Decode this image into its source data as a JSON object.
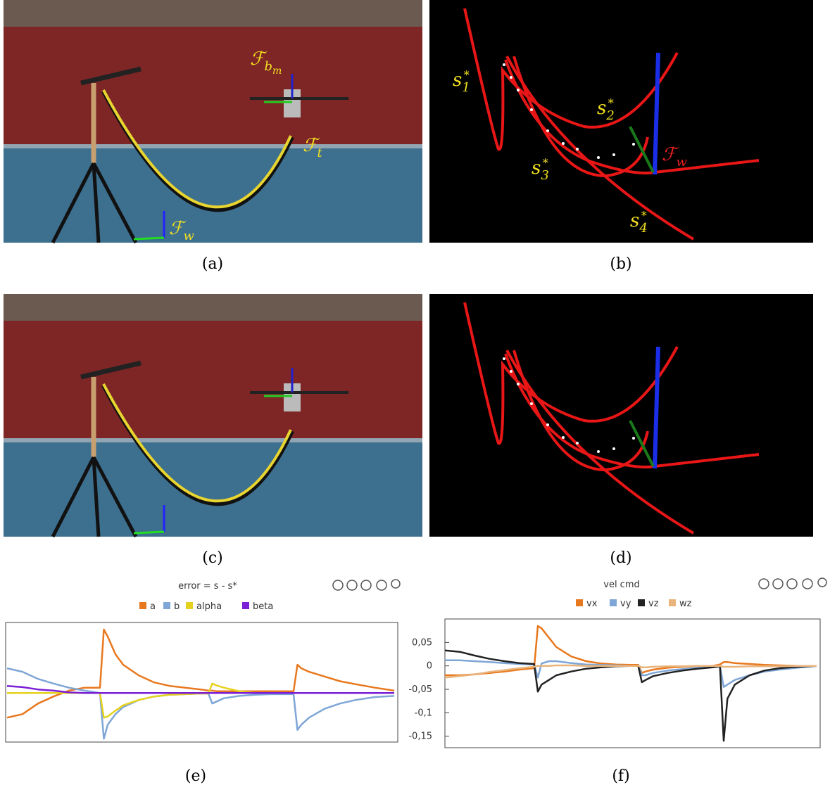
{
  "panels": [
    {
      "caption": "(a)",
      "labels": [
        {
          "symbol": "ℱ",
          "sub": "b",
          "subsub": "m"
        },
        {
          "symbol": "ℱ",
          "sub": "t"
        },
        {
          "symbol": "ℱ",
          "sub": "w"
        }
      ]
    },
    {
      "caption": "(b)",
      "labels": [
        {
          "symbol": "s",
          "sub": "1",
          "sup": "*"
        },
        {
          "symbol": "s",
          "sub": "2",
          "sup": "*"
        },
        {
          "symbol": "s",
          "sub": "3",
          "sup": "*"
        },
        {
          "symbol": "s",
          "sub": "4",
          "sup": "*"
        },
        {
          "symbol": "ℱ",
          "sub": "w"
        }
      ]
    },
    {
      "caption": "(c)"
    },
    {
      "caption": "(d)"
    },
    {
      "caption": "(e)"
    },
    {
      "caption": "(f)"
    }
  ],
  "chart_data": [
    {
      "type": "line",
      "title": "error = s - s*",
      "x": [
        0,
        4,
        8,
        12,
        16,
        20,
        24,
        25,
        26,
        28,
        30,
        34,
        38,
        42,
        46,
        50,
        52,
        53,
        54,
        56,
        60,
        64,
        68,
        72,
        74,
        75,
        76,
        78,
        82,
        86,
        90,
        95,
        100
      ],
      "xlim": [
        0,
        100
      ],
      "ylim": [
        -1,
        1
      ],
      "series": [
        {
          "name": "a",
          "color": "#e8781e",
          "values": [
            -0.62,
            -0.56,
            -0.38,
            -0.26,
            -0.16,
            -0.11,
            -0.11,
            0.88,
            0.76,
            0.46,
            0.28,
            0.1,
            -0.02,
            -0.08,
            -0.11,
            -0.14,
            -0.16,
            -0.16,
            -0.17,
            -0.17,
            -0.17,
            -0.17,
            -0.17,
            -0.17,
            -0.17,
            0.28,
            0.22,
            0.16,
            0.08,
            0,
            -0.05,
            -0.11,
            -0.16
          ]
        },
        {
          "name": "b",
          "color": "#7ea6d6",
          "values": [
            0.22,
            0.16,
            0.04,
            -0.04,
            -0.11,
            -0.16,
            -0.2,
            -0.98,
            -0.74,
            -0.56,
            -0.44,
            -0.32,
            -0.26,
            -0.23,
            -0.22,
            -0.21,
            -0.21,
            -0.38,
            -0.35,
            -0.29,
            -0.25,
            -0.23,
            -0.22,
            -0.22,
            -0.22,
            -0.83,
            -0.74,
            -0.62,
            -0.47,
            -0.38,
            -0.32,
            -0.27,
            -0.25
          ]
        },
        {
          "name": "alpha",
          "color": "#e6d21e",
          "values": [
            -0.2,
            -0.2,
            -0.2,
            -0.2,
            -0.2,
            -0.2,
            -0.2,
            -0.62,
            -0.6,
            -0.5,
            -0.41,
            -0.32,
            -0.26,
            -0.23,
            -0.22,
            -0.21,
            -0.21,
            -0.04,
            -0.07,
            -0.11,
            -0.17,
            -0.2,
            -0.2,
            -0.2,
            -0.2,
            -0.2,
            -0.2,
            -0.2,
            -0.2,
            -0.2,
            -0.2,
            -0.2,
            -0.2
          ]
        },
        {
          "name": "beta",
          "color": "#7a1fd6",
          "values": [
            -0.08,
            -0.1,
            -0.14,
            -0.16,
            -0.19,
            -0.2,
            -0.2,
            -0.2,
            -0.2,
            -0.2,
            -0.2,
            -0.2,
            -0.2,
            -0.2,
            -0.2,
            -0.2,
            -0.2,
            -0.2,
            -0.2,
            -0.2,
            -0.2,
            -0.2,
            -0.2,
            -0.2,
            -0.2,
            -0.2,
            -0.2,
            -0.2,
            -0.2,
            -0.2,
            -0.2,
            -0.2,
            -0.2
          ]
        }
      ]
    },
    {
      "type": "line",
      "title": "vel cmd",
      "x": [
        0,
        4,
        8,
        12,
        16,
        20,
        24,
        25,
        26,
        28,
        30,
        34,
        38,
        42,
        46,
        50,
        52,
        53,
        54,
        56,
        60,
        64,
        68,
        72,
        74,
        75,
        76,
        78,
        82,
        86,
        90,
        95,
        100
      ],
      "xlim": [
        0,
        100
      ],
      "ylim": [
        -0.17,
        0.1
      ],
      "yticks": [
        {
          "value": 0.05,
          "label": "0,05"
        },
        0,
        {
          "value": -0.05,
          "label": "-0,05"
        },
        {
          "value": -0.1,
          "label": "-0,1"
        },
        {
          "value": -0.15,
          "label": "-0,15"
        }
      ],
      "series": [
        {
          "name": "vx",
          "color": "#e8781e",
          "values": [
            -0.02,
            -0.02,
            -0.018,
            -0.015,
            -0.012,
            -0.008,
            -0.005,
            0.085,
            0.08,
            0.06,
            0.04,
            0.02,
            0.01,
            0.005,
            0.003,
            0.002,
            0.002,
            -0.015,
            -0.012,
            -0.008,
            -0.004,
            -0.002,
            0,
            0,
            0.003,
            0.008,
            0.008,
            0.006,
            0.004,
            0.002,
            0.001,
            0,
            0
          ]
        },
        {
          "name": "vy",
          "color": "#7ea6d6",
          "values": [
            0.012,
            0.012,
            0.01,
            0.008,
            0.006,
            0.004,
            0.003,
            -0.025,
            0.005,
            0.01,
            0.01,
            0.006,
            0.003,
            0.002,
            0.001,
            0,
            0,
            -0.02,
            -0.02,
            -0.015,
            -0.01,
            -0.007,
            -0.004,
            -0.002,
            0,
            -0.045,
            -0.04,
            -0.03,
            -0.02,
            -0.012,
            -0.008,
            -0.004,
            0
          ]
        },
        {
          "name": "vz",
          "color": "#222222",
          "values": [
            0.033,
            0.03,
            0.022,
            0.015,
            0.01,
            0.006,
            0.004,
            -0.055,
            -0.04,
            -0.03,
            -0.02,
            -0.012,
            -0.006,
            -0.003,
            -0.001,
            0,
            0,
            -0.035,
            -0.03,
            -0.022,
            -0.015,
            -0.01,
            -0.006,
            -0.003,
            -0.001,
            -0.16,
            -0.07,
            -0.04,
            -0.02,
            -0.01,
            -0.005,
            -0.002,
            0
          ]
        },
        {
          "name": "wz",
          "color": "#e8b47c",
          "values": [
            -0.025,
            -0.022,
            -0.018,
            -0.013,
            -0.009,
            -0.005,
            -0.002,
            0,
            0,
            0,
            0.001,
            0.001,
            0,
            0,
            0,
            0,
            0,
            -0.003,
            -0.003,
            -0.002,
            -0.001,
            -0.001,
            0,
            0,
            0,
            -0.002,
            -0.002,
            -0.002,
            -0.001,
            -0.001,
            -0.001,
            0,
            0
          ]
        }
      ]
    }
  ]
}
